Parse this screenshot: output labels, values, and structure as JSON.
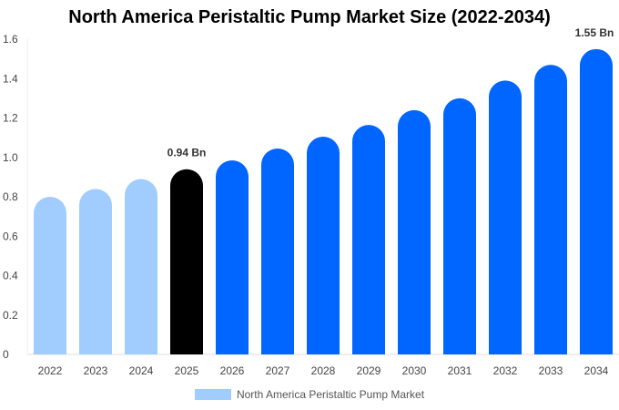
{
  "chart_data": {
    "type": "bar",
    "title": "North America Peristaltic Pump Market Size (2022-2034)",
    "categories": [
      "2022",
      "2023",
      "2024",
      "2025",
      "2026",
      "2027",
      "2028",
      "2029",
      "2030",
      "2031",
      "2032",
      "2033",
      "2034"
    ],
    "values": [
      0.8,
      0.84,
      0.89,
      0.94,
      0.985,
      1.045,
      1.105,
      1.165,
      1.24,
      1.3,
      1.39,
      1.47,
      1.55
    ],
    "bar_colors": [
      "#a0cdfd",
      "#a0cdfd",
      "#a0cdfd",
      "#000000",
      "#0066ff",
      "#0066ff",
      "#0066ff",
      "#0066ff",
      "#0066ff",
      "#0066ff",
      "#0066ff",
      "#0066ff",
      "#0066ff"
    ],
    "data_labels": {
      "3": "0.94 Bn",
      "12": "1.55 Bn"
    },
    "ylim": [
      0,
      1.6
    ],
    "yticks": [
      "0",
      "0.2",
      "0.4",
      "0.6",
      "0.8",
      "1.0",
      "1.2",
      "1.4",
      "1.6"
    ],
    "xlabel": "",
    "ylabel": "",
    "grid": false,
    "legend": {
      "position": "bottom",
      "entries": [
        "North America Peristaltic Pump Market"
      ]
    }
  }
}
